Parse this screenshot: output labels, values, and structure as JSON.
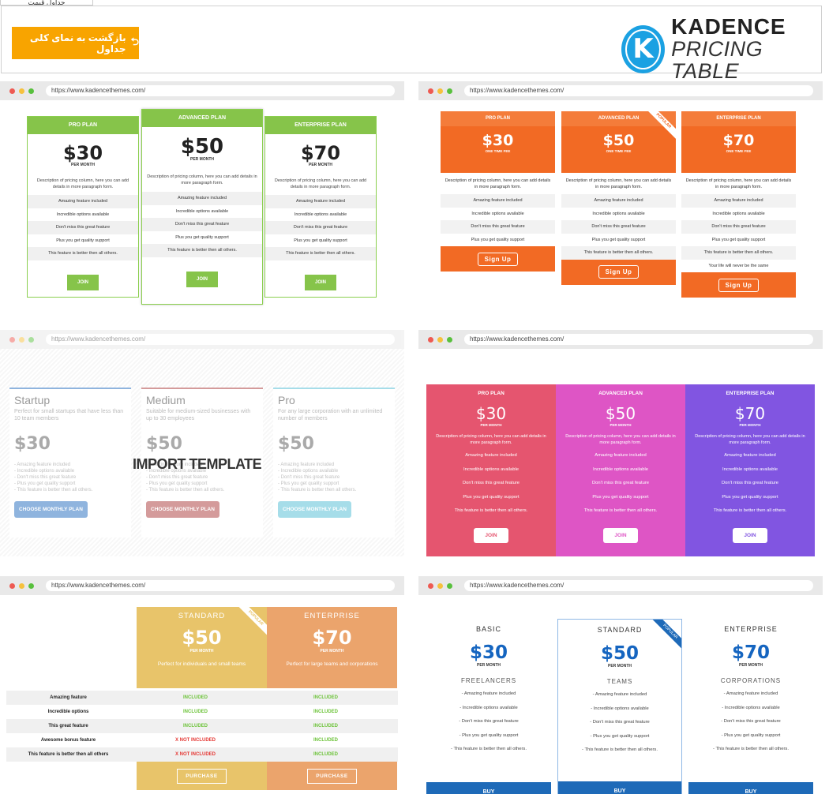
{
  "tab": {
    "label": "جداول قیمت"
  },
  "header": {
    "back_button": "بازگشت به نمای کلی جداول",
    "logo_line1": "KADENCE",
    "logo_line2": "PRICING TABLE",
    "logo_letter": "K"
  },
  "url": "https://www.kadencethemes.com/",
  "overlay": {
    "import_label": "IMPORT TEMPLATE"
  },
  "common": {
    "description": "Description of pricing column, here you can add details in more paragraph form.",
    "features": [
      "Amazing feature included",
      "Incredible options available",
      "Don't miss this great feature",
      "Plus you get quality support",
      "This feature is better then all others."
    ],
    "per_month": "PER MONTH",
    "one_time": "ONE TIME FEE",
    "join": "JOIN",
    "sign_up": "Sign Up",
    "popular": "POPULAR",
    "buy": "BUY",
    "purchase": "PURCHASE"
  },
  "tile1": {
    "plans": [
      {
        "name": "PRO PLAN",
        "price": "$30"
      },
      {
        "name": "ADVANCED PLAN",
        "price": "$50"
      },
      {
        "name": "ENTERPRISE PLAN",
        "price": "$70"
      }
    ]
  },
  "tile2": {
    "plans": [
      {
        "name": "PRO PLAN",
        "price": "$30"
      },
      {
        "name": "ADVANCED PLAN",
        "price": "$50"
      },
      {
        "name": "ENTERPRISE PLAN",
        "price": "$70"
      }
    ],
    "extra_feature": "Your life will never be the same"
  },
  "tile3": {
    "plans": [
      {
        "name": "Startup",
        "sub": "Perfect for small startups that have less than 10 team members",
        "price": "$30",
        "btn": "CHOOSE MONTHLY PLAN",
        "color": "#8fb4de"
      },
      {
        "name": "Medium",
        "sub": "Suitable for medium-sized businesses with up to 30 employees",
        "price": "$50",
        "btn": "CHOOSE MONTHLY PLAN",
        "color": "#d49b9b"
      },
      {
        "name": "Pro",
        "sub": "For any large corporation with an unlimited number of members",
        "price": "$50",
        "btn": "CHOOSE MONTHLY PLAN",
        "color": "#a6dde9"
      }
    ],
    "features": [
      "- Amazing feature included",
      "- Incredible options available",
      "- Don't miss this great feature",
      "- Plus you get quality support",
      "- This feature is better then all others."
    ]
  },
  "tile4": {
    "plans": [
      {
        "name": "PRO PLAN",
        "price": "$30",
        "color": "#e5556f",
        "btncolor": "#e5556f"
      },
      {
        "name": "ADVANCED PLAN",
        "price": "$50",
        "color": "#de55c5",
        "btncolor": "#de55c5"
      },
      {
        "name": "ENTERPRISE PLAN",
        "price": "$70",
        "color": "#8155e1",
        "btncolor": "#8155e1"
      }
    ]
  },
  "tile5": {
    "plans": [
      {
        "name": "STANDARD",
        "price": "$50",
        "desc": "Perfect for individuals and small teams",
        "color": "#e8c46a"
      },
      {
        "name": "ENTERPRISE",
        "price": "$70",
        "desc": "Perfect for large teams and corporations",
        "color": "#eba46c"
      }
    ],
    "rows": [
      {
        "label": "Amazing feature",
        "v1": "INCLUDED",
        "v2": "INCLUDED"
      },
      {
        "label": "Incredible options",
        "v1": "INCLUDED",
        "v2": "INCLUDED"
      },
      {
        "label": "This great feature",
        "v1": "INCLUDED",
        "v2": "INCLUDED"
      },
      {
        "label": "Awesome bonus feature",
        "v1": "X NOT INCLUDED",
        "v2": "INCLUDED"
      },
      {
        "label": "This feature is better then all others",
        "v1": "X NOT INCLUDED",
        "v2": "INCLUDED"
      }
    ]
  },
  "tile6": {
    "plans": [
      {
        "name": "BASIC",
        "price": "$30",
        "audience": "FREELANCERS"
      },
      {
        "name": "STANDARD",
        "price": "$50",
        "audience": "TEAMS"
      },
      {
        "name": "ENTERPRISE",
        "price": "$70",
        "audience": "CORPORATIONS"
      }
    ],
    "features": [
      "- Amazing feature included",
      "- Incredible options available",
      "- Don't miss this great feature",
      "- Plus you get quality support",
      "- This feature is better then all others."
    ]
  }
}
